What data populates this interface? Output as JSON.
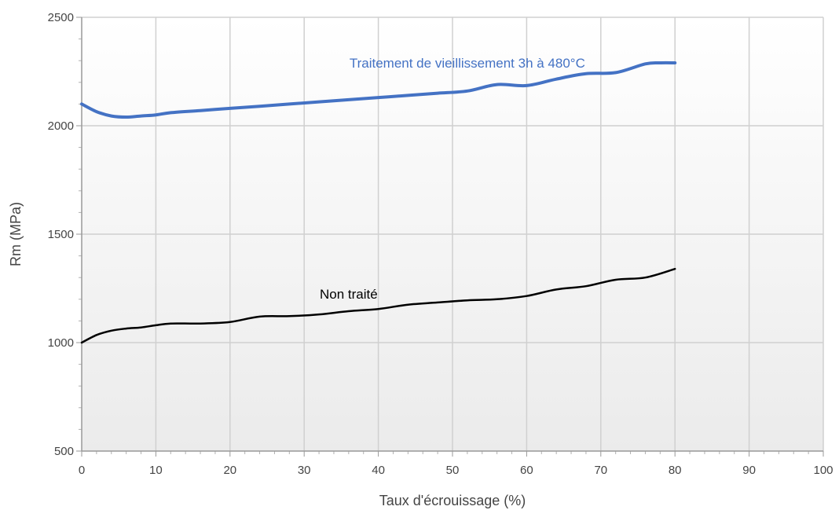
{
  "chart_data": {
    "type": "line",
    "xlabel": "Taux d'écrouissage (%)",
    "ylabel": "Rm (MPa)",
    "xlim": [
      0,
      100
    ],
    "ylim": [
      500,
      2500
    ],
    "x_ticks": [
      "0",
      "10",
      "20",
      "30",
      "40",
      "50",
      "60",
      "70",
      "80",
      "90",
      "100"
    ],
    "y_ticks": [
      "500",
      "1000",
      "1500",
      "2000",
      "2500"
    ],
    "grid": true,
    "series": [
      {
        "name": "Traitement de vieillissement 3h à 480°C",
        "color": "#4472c4",
        "x": [
          0,
          2,
          4,
          6,
          8,
          10,
          12,
          16,
          20,
          24,
          28,
          32,
          36,
          40,
          44,
          48,
          52,
          56,
          60,
          64,
          68,
          72,
          76,
          78,
          80
        ],
        "y": [
          2100,
          2065,
          2045,
          2040,
          2045,
          2050,
          2060,
          2070,
          2080,
          2090,
          2100,
          2110,
          2120,
          2130,
          2140,
          2150,
          2160,
          2190,
          2185,
          2215,
          2240,
          2245,
          2285,
          2290,
          2290
        ]
      },
      {
        "name": "Non traité",
        "color": "#000000",
        "x": [
          0,
          2,
          4,
          6,
          8,
          10,
          12,
          16,
          20,
          24,
          28,
          32,
          36,
          40,
          44,
          48,
          52,
          56,
          60,
          64,
          68,
          72,
          76,
          80
        ],
        "y": [
          1000,
          1035,
          1055,
          1065,
          1070,
          1080,
          1088,
          1088,
          1095,
          1120,
          1122,
          1130,
          1145,
          1155,
          1175,
          1185,
          1195,
          1200,
          1215,
          1245,
          1260,
          1290,
          1300,
          1340
        ]
      }
    ],
    "annotations": [
      {
        "text": "Traitement de vieillissement 3h à 480°C",
        "x": 52,
        "y": 2290,
        "color": "#4472c4"
      },
      {
        "text": "Non traité",
        "x": 36,
        "y": 1225,
        "color": "#000000"
      }
    ]
  }
}
